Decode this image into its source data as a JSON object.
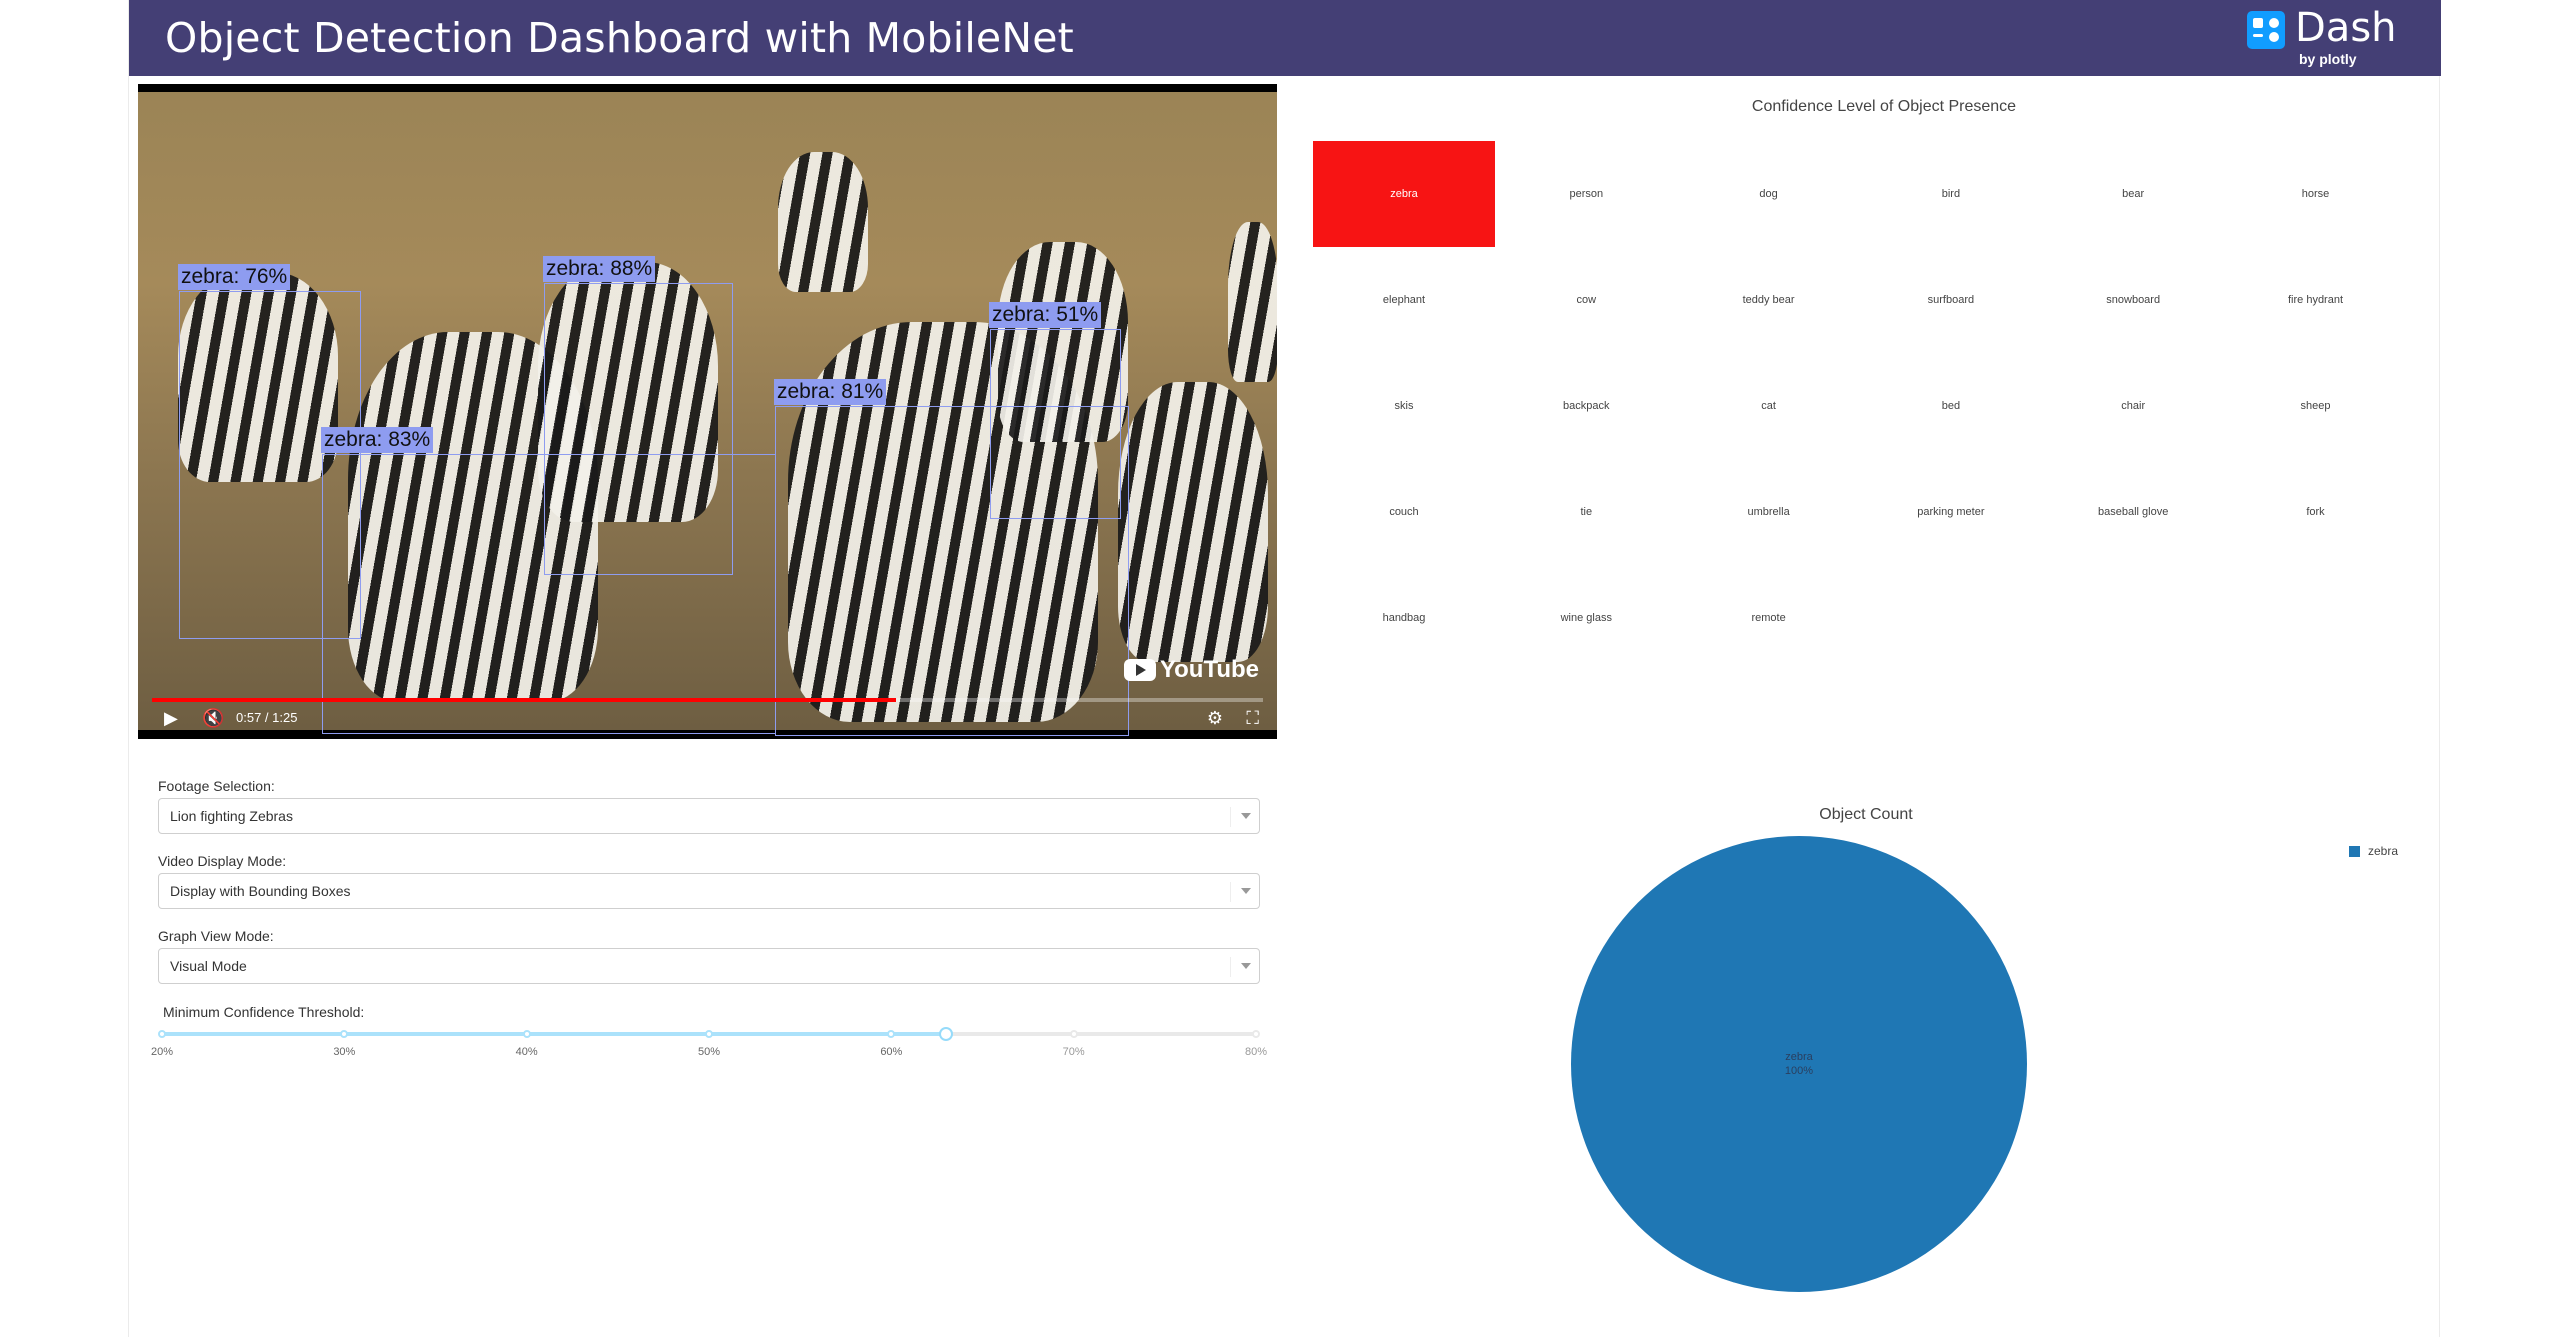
{
  "banner": {
    "title": "Object Detection Dashboard with MobileNet",
    "logo_word": "Dash",
    "logo_by": "by plotly"
  },
  "video": {
    "detections": [
      {
        "label": "zebra: 76%"
      },
      {
        "label": "zebra: 88%"
      },
      {
        "label": "zebra: 51%"
      },
      {
        "label": "zebra: 81%"
      },
      {
        "label": "zebra: 83%"
      }
    ],
    "watermark": "YouTube",
    "time": "0:57 / 1:25",
    "progress": 0.67
  },
  "controls": {
    "footage_label": "Footage Selection:",
    "footage_value": "Lion fighting Zebras",
    "display_label": "Video Display Mode:",
    "display_value": "Display with Bounding Boxes",
    "graph_label": "Graph View Mode:",
    "graph_value": "Visual Mode",
    "threshold_label": "Minimum Confidence Threshold:",
    "threshold_marks": [
      "20%",
      "30%",
      "40%",
      "50%",
      "60%",
      "70%",
      "80%"
    ],
    "threshold_value": 63
  },
  "heatmap": {
    "title": "Confidence Level of Object Presence",
    "rows": [
      [
        "zebra",
        "person",
        "dog",
        "bird",
        "bear",
        "horse"
      ],
      [
        "elephant",
        "cow",
        "teddy bear",
        "surfboard",
        "snowboard",
        "fire hydrant"
      ],
      [
        "skis",
        "backpack",
        "cat",
        "bed",
        "chair",
        "sheep"
      ],
      [
        "couch",
        "tie",
        "umbrella",
        "parking meter",
        "baseball glove",
        "fork"
      ],
      [
        "handbag",
        "wine glass",
        "remote",
        "",
        "",
        ""
      ]
    ],
    "hot_cell": "zebra",
    "hot_color": "#f71414"
  },
  "chart_data": {
    "type": "pie",
    "title": "Object Count",
    "labels": [
      "zebra"
    ],
    "values": [
      1
    ],
    "slice_text": [
      "zebra",
      "100%"
    ],
    "legend": [
      "zebra"
    ],
    "legend_position": "top-right",
    "colors": [
      "#1f77b4"
    ]
  }
}
